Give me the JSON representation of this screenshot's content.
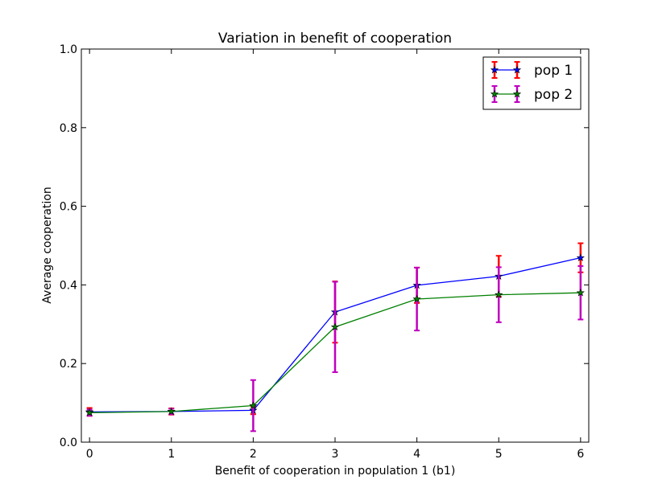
{
  "chart_data": {
    "type": "line",
    "title": "Variation in benefit of cooperation",
    "xlabel": "Benefit of cooperation in population 1 (b1)",
    "ylabel": "Average cooperation",
    "xlim": [
      -0.1,
      6.1
    ],
    "ylim": [
      0.0,
      1.0
    ],
    "x": [
      0,
      1,
      2,
      3,
      4,
      5,
      6
    ],
    "xticks": [
      "0",
      "1",
      "2",
      "3",
      "4",
      "5",
      "6"
    ],
    "yticks": [
      "0.0",
      "0.2",
      "0.4",
      "0.6",
      "0.8",
      "1.0"
    ],
    "grid": false,
    "legend_position": "top-right",
    "series": [
      {
        "name": "pop 1",
        "color": "#0000ff",
        "errorbar_color": "#ff0000",
        "marker": "star",
        "values": [
          0.077,
          0.078,
          0.081,
          0.331,
          0.399,
          0.422,
          0.469
        ],
        "errors": [
          0.01,
          0.008,
          0.01,
          0.078,
          0.045,
          0.052,
          0.037
        ]
      },
      {
        "name": "pop 2",
        "color": "#008000",
        "errorbar_color": "#bf00bf",
        "marker": "star",
        "values": [
          0.075,
          0.078,
          0.093,
          0.293,
          0.364,
          0.375,
          0.38
        ],
        "errors": [
          0.008,
          0.007,
          0.065,
          0.115,
          0.08,
          0.07,
          0.068
        ]
      }
    ]
  }
}
